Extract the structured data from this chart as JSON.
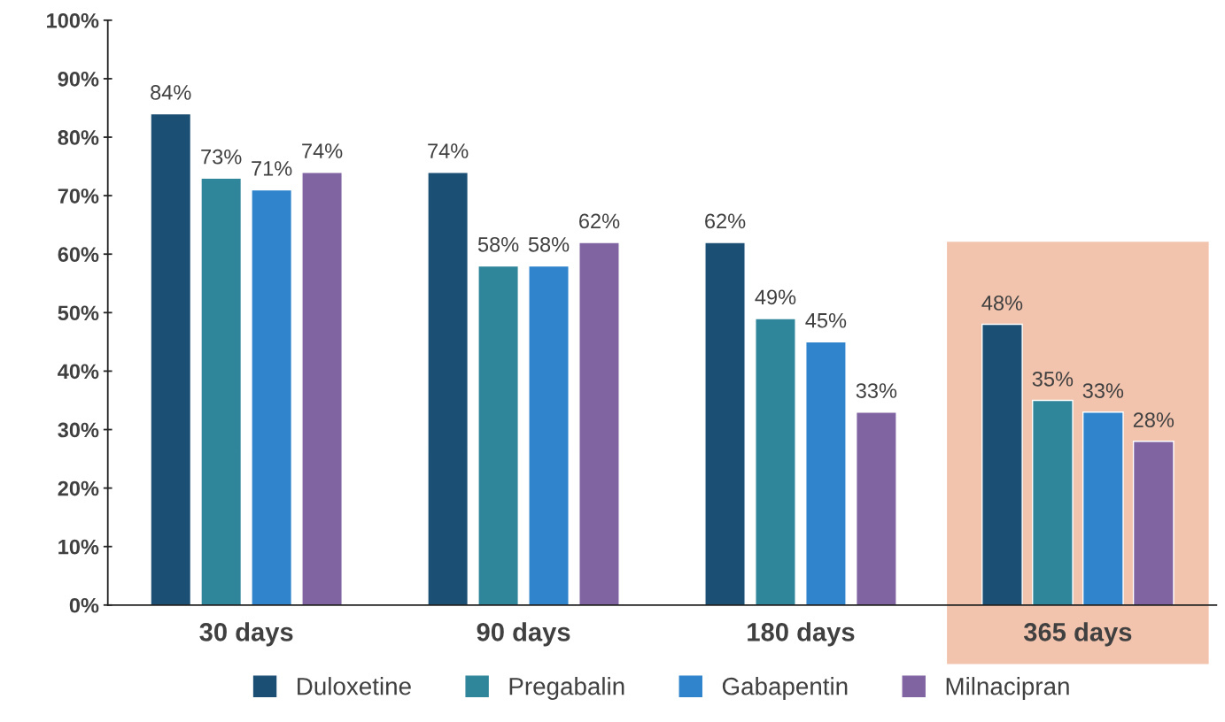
{
  "chart_data": {
    "type": "bar",
    "categories": [
      "30 days",
      "90 days",
      "180 days",
      "365 days"
    ],
    "series": [
      {
        "name": "Duloxetine",
        "color": "#1c4f74",
        "values": [
          84,
          74,
          62,
          48
        ]
      },
      {
        "name": "Pregabalin",
        "color": "#2f859a",
        "values": [
          73,
          58,
          49,
          35
        ]
      },
      {
        "name": "Gabapentin",
        "color": "#2f84cc",
        "values": [
          71,
          58,
          45,
          33
        ]
      },
      {
        "name": "Milnacipran",
        "color": "#8064a2",
        "values": [
          74,
          62,
          33,
          28
        ]
      }
    ],
    "ylim": [
      0,
      100
    ],
    "yticks": [
      {
        "value": 0,
        "label": "0%"
      },
      {
        "value": 10,
        "label": "10%"
      },
      {
        "value": 20,
        "label": "20%"
      },
      {
        "value": 30,
        "label": "30%"
      },
      {
        "value": 40,
        "label": "40%"
      },
      {
        "value": 50,
        "label": "50%"
      },
      {
        "value": 60,
        "label": "60%"
      },
      {
        "value": 70,
        "label": "70%"
      },
      {
        "value": 80,
        "label": "80%"
      },
      {
        "value": 90,
        "label": "90%"
      },
      {
        "value": 100,
        "label": "100%"
      }
    ],
    "value_labels": [
      [
        "84%",
        "74%",
        "62%",
        "48%"
      ],
      [
        "73%",
        "58%",
        "49%",
        "35%"
      ],
      [
        "71%",
        "58%",
        "45%",
        "33%"
      ],
      [
        "74%",
        "62%",
        "33%",
        "28%"
      ]
    ],
    "bands": [
      {
        "axis": "x",
        "from": "365 days",
        "to": "365 days",
        "color": "#f2c4ae"
      }
    ],
    "grid": false,
    "legend": "bottom"
  }
}
